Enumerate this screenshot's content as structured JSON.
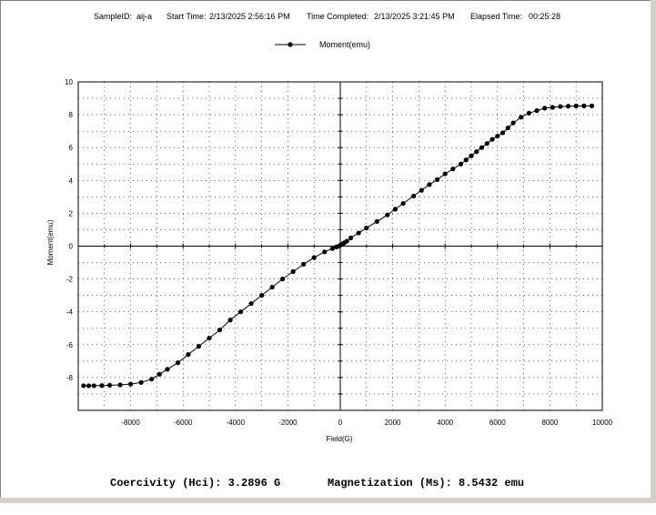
{
  "header": {
    "sample_id_label": "SampleID:",
    "sample_id": "aij-a",
    "start_label": "Start Time:",
    "start_time": "2/13/2025 2:56:16 PM",
    "completed_label": "Time Completed:",
    "completed_time": "2/13/2025 3:21:45 PM",
    "elapsed_label": "Elapsed Time:",
    "elapsed_time": "00:25:28"
  },
  "footer": {
    "coercivity": "Coercivity (Hci): 3.2896 G",
    "magnetization": "Magnetization (Ms): 8.5432 emu"
  },
  "colors": {
    "series": "#000000",
    "grid": "#000000",
    "background": "#ffffff"
  },
  "chart_data": {
    "type": "line",
    "title": "",
    "xlabel": "Field(G)",
    "ylabel": "Moment(emu)",
    "xlim": [
      -10000,
      10000
    ],
    "ylim": [
      -10,
      10
    ],
    "xticks": [
      -8000,
      -6000,
      -4000,
      -2000,
      0,
      2000,
      4000,
      6000,
      8000,
      10000
    ],
    "yticks": [
      -8,
      -6,
      -4,
      -2,
      0,
      2,
      4,
      6,
      8,
      10
    ],
    "grid": true,
    "legend": "top-center",
    "series": [
      {
        "name": "Moment(emu)",
        "x": [
          -9800,
          -9600,
          -9400,
          -9100,
          -8800,
          -8400,
          -8000,
          -7600,
          -7200,
          -6900,
          -6600,
          -6200,
          -5800,
          -5400,
          -5000,
          -4600,
          -4200,
          -3800,
          -3400,
          -3000,
          -2600,
          -2200,
          -1800,
          -1400,
          -1000,
          -600,
          -300,
          -150,
          -50,
          0,
          50,
          100,
          150,
          250,
          400,
          700,
          1000,
          1400,
          1800,
          2100,
          2400,
          2800,
          3100,
          3400,
          3700,
          4000,
          4300,
          4600,
          4800,
          5000,
          5200,
          5400,
          5600,
          5800,
          6000,
          6200,
          6400,
          6600,
          6900,
          7200,
          7500,
          7800,
          8100,
          8400,
          8700,
          9000,
          9300,
          9600
        ],
        "y": [
          -8.5,
          -8.5,
          -8.5,
          -8.49,
          -8.47,
          -8.45,
          -8.4,
          -8.3,
          -8.1,
          -7.8,
          -7.5,
          -7.1,
          -6.6,
          -6.1,
          -5.6,
          -5.1,
          -4.5,
          -4.0,
          -3.5,
          -3.0,
          -2.5,
          -2.0,
          -1.55,
          -1.1,
          -0.7,
          -0.35,
          -0.15,
          -0.05,
          0.0,
          0.05,
          0.1,
          0.15,
          0.2,
          0.3,
          0.5,
          0.8,
          1.1,
          1.5,
          1.9,
          2.25,
          2.6,
          3.05,
          3.4,
          3.75,
          4.05,
          4.4,
          4.7,
          5.0,
          5.25,
          5.5,
          5.75,
          6.0,
          6.25,
          6.5,
          6.7,
          6.9,
          7.2,
          7.5,
          7.85,
          8.1,
          8.25,
          8.4,
          8.45,
          8.5,
          8.52,
          8.54,
          8.54,
          8.54
        ]
      }
    ]
  }
}
